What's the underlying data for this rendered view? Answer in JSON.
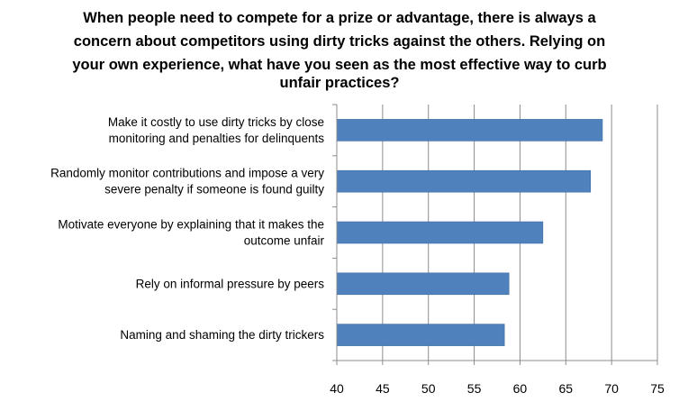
{
  "chart_data": {
    "type": "bar",
    "orientation": "horizontal",
    "title_lines": [
      "When people need to compete for a prize or advantage, there is always a",
      "concern about competitors using dirty tricks against the others. Relying on",
      "your own experience, what have you seen as the most effective way to curb",
      "unfair practices?"
    ],
    "categories": [
      [
        "Make it costly to use dirty tricks by close",
        "monitoring and penalties for delinquents"
      ],
      [
        "Randomly monitor contributions and impose a very",
        "severe penalty if someone is found guilty"
      ],
      [
        "Motivate everyone by explaining that it makes the",
        "outcome unfair"
      ],
      [
        "Rely on informal pressure by peers"
      ],
      [
        "Naming and shaming the dirty trickers"
      ]
    ],
    "values": [
      69,
      67.7,
      62.5,
      58.8,
      58.3
    ],
    "xlim": [
      40,
      75
    ],
    "xticks": [
      "40",
      "45",
      "50",
      "55",
      "60",
      "65",
      "70",
      "75"
    ],
    "grid": "vertical",
    "legend": "none",
    "bar_color": "#4f81bd"
  }
}
